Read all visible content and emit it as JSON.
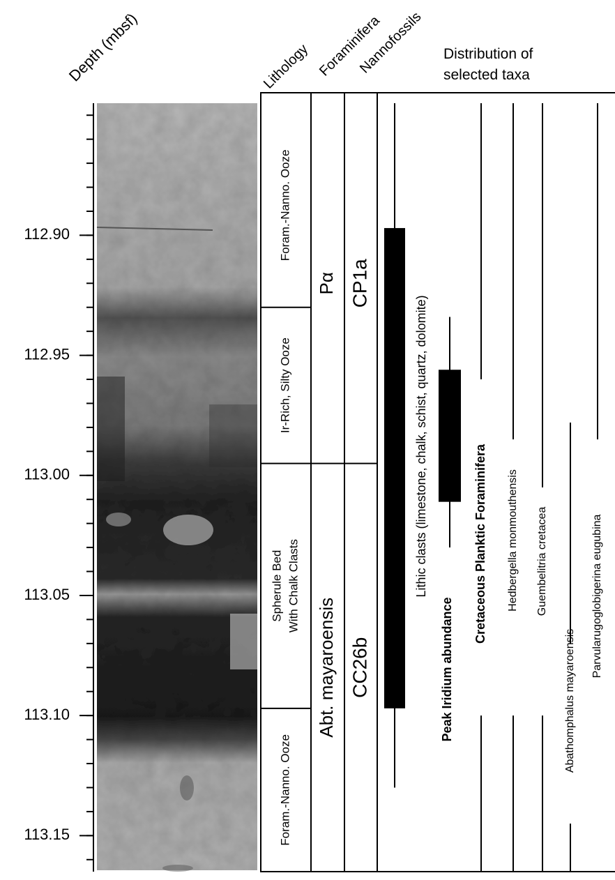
{
  "headers": {
    "depth": "Depth (mbsf)",
    "lithology": "Lithology",
    "foraminifera": "Foraminifera",
    "nannofossils": "Nannofossils",
    "distribution_line1": "Distribution of",
    "distribution_line2": "selected taxa"
  },
  "depth_axis": {
    "range": [
      112.845,
      113.165
    ],
    "ticks": [
      "112.90",
      "112.95",
      "113.00",
      "113.05",
      "113.10",
      "113.15"
    ],
    "minor_tick_step": 0.01
  },
  "lithology_units": [
    {
      "label": "Foram.-Nanno. Ooze",
      "lines": [
        "Foram.-Nanno. Ooze"
      ],
      "top": 112.845,
      "bottom": 112.93
    },
    {
      "label": "Ir-Rich, Silty Ooze",
      "lines": [
        "Ir-Rich, Silty Ooze"
      ],
      "top": 112.93,
      "bottom": 112.995
    },
    {
      "label": "Spherule Bed With Chalk Clasts",
      "lines": [
        "Spherule Bed",
        "With Chalk Clasts"
      ],
      "top": 112.995,
      "bottom": 113.097
    },
    {
      "label": "Foram.-Nanno. Ooze",
      "lines": [
        "Foram.-Nanno. Ooze"
      ],
      "top": 113.097,
      "bottom": 113.165
    }
  ],
  "foraminifera_zones": [
    {
      "label": "Pα",
      "top": 112.845,
      "bottom": 112.995
    },
    {
      "label": "Abt. mayaroensis",
      "top": 112.995,
      "bottom": 113.165
    }
  ],
  "nannofossil_zones": [
    {
      "label": "CP1a",
      "top": 112.845,
      "bottom": 112.995
    },
    {
      "label": "CC26b",
      "top": 112.995,
      "bottom": 113.165
    }
  ],
  "taxa": [
    {
      "name": "Lithic clasts (limestone, chalk, schist, quartz, dolomite)",
      "bold": false,
      "line_top": 112.845,
      "line_bottom": 113.13,
      "bar_top": 112.897,
      "bar_bottom": 113.097
    },
    {
      "name": "Peak Iridium abundance",
      "bold": true,
      "line_top": 112.934,
      "line_bottom": 113.03,
      "bar_top": 112.956,
      "bar_bottom": 113.011
    },
    {
      "name": "Cretaceous Planktic Foraminifera",
      "bold": true,
      "line_top": 112.845,
      "line_bottom": 112.96,
      "line2_top": 113.1,
      "line2_bottom": 113.165
    },
    {
      "name": "Hedbergella monmouthensis",
      "bold": false,
      "line_top": 112.845,
      "line_bottom": 112.985,
      "line2_top": 113.1,
      "line2_bottom": 113.165
    },
    {
      "name": "Guembelitria cretacea",
      "bold": false,
      "line_top": 112.845,
      "line_bottom": 113.005,
      "line2_top": 113.1,
      "line2_bottom": 113.165
    },
    {
      "name": "Abathomphalus mayaroensis",
      "bold": false,
      "line_top": 112.978,
      "line_bottom": 113.07,
      "line2_top": 113.145,
      "line2_bottom": 113.165
    },
    {
      "name": "Parvularugoglobigerina eugubina",
      "bold": false,
      "line_top": 112.845,
      "line_bottom": 112.985
    }
  ]
}
